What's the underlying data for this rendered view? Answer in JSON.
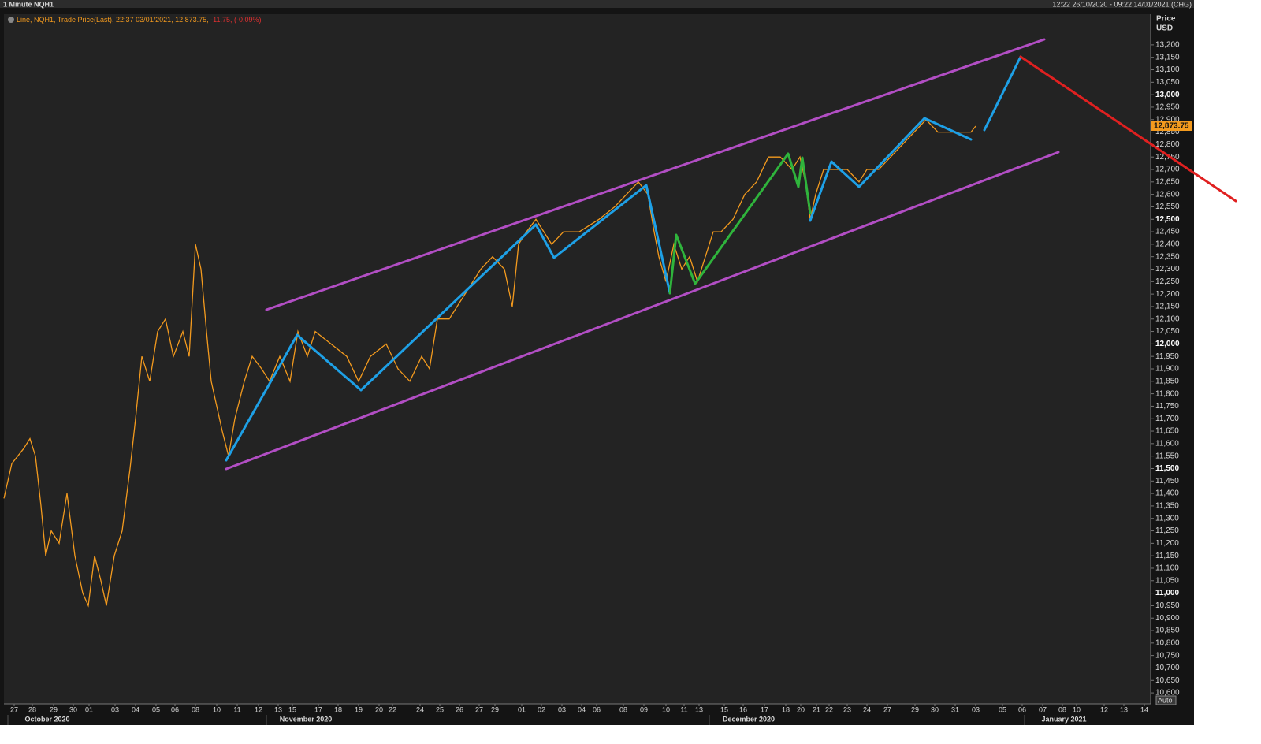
{
  "chart_data": {
    "type": "line",
    "title": "1 Minute NQH1",
    "legend_text": "Line, NQH1, Trade Price(Last), 22:37 03/01/2021, 12,873.75,",
    "legend_change": "-11.75, (-0.09%)",
    "range_text": "12:22 26/10/2020 - 09:22 14/01/2021 (CHG)",
    "y_axis_title": "Price",
    "y_axis_unit": "USD",
    "last_price_label": "12,873.75",
    "scale_button": "Auto",
    "color": "#f39a1e",
    "xlim": [
      0,
      1455
    ],
    "ylim": [
      10556,
      13323
    ],
    "xticks": [
      {
        "value": 13,
        "label": "27"
      },
      {
        "value": 36,
        "label": "28"
      },
      {
        "value": 63,
        "label": "29"
      },
      {
        "value": 88,
        "label": "30"
      },
      {
        "value": 108,
        "label": "01"
      },
      {
        "value": 141,
        "label": "03"
      },
      {
        "value": 167,
        "label": "04"
      },
      {
        "value": 193,
        "label": "05"
      },
      {
        "value": 217,
        "label": "06"
      },
      {
        "value": 243,
        "label": "08"
      },
      {
        "value": 270,
        "label": "10"
      },
      {
        "value": 296,
        "label": "11"
      },
      {
        "value": 323,
        "label": "12"
      },
      {
        "value": 348,
        "label": "13"
      },
      {
        "value": 366,
        "label": "15"
      },
      {
        "value": 399,
        "label": "17"
      },
      {
        "value": 424,
        "label": "18"
      },
      {
        "value": 450,
        "label": "19"
      },
      {
        "value": 476,
        "label": "20"
      },
      {
        "value": 493,
        "label": "22"
      },
      {
        "value": 528,
        "label": "24"
      },
      {
        "value": 553,
        "label": "25"
      },
      {
        "value": 578,
        "label": "26"
      },
      {
        "value": 603,
        "label": "27"
      },
      {
        "value": 623,
        "label": "29"
      },
      {
        "value": 657,
        "label": "01"
      },
      {
        "value": 682,
        "label": "02"
      },
      {
        "value": 708,
        "label": "03"
      },
      {
        "value": 733,
        "label": "04"
      },
      {
        "value": 752,
        "label": "06"
      },
      {
        "value": 786,
        "label": "08"
      },
      {
        "value": 812,
        "label": "09"
      },
      {
        "value": 840,
        "label": "10"
      },
      {
        "value": 863,
        "label": "11"
      },
      {
        "value": 882,
        "label": "13"
      },
      {
        "value": 914,
        "label": "15"
      },
      {
        "value": 938,
        "label": "16"
      },
      {
        "value": 965,
        "label": "17"
      },
      {
        "value": 992,
        "label": "18"
      },
      {
        "value": 1011,
        "label": "20"
      },
      {
        "value": 1031,
        "label": "21"
      },
      {
        "value": 1047,
        "label": "22"
      },
      {
        "value": 1070,
        "label": "23"
      },
      {
        "value": 1095,
        "label": "24"
      },
      {
        "value": 1121,
        "label": "27"
      },
      {
        "value": 1156,
        "label": "29"
      },
      {
        "value": 1181,
        "label": "30"
      },
      {
        "value": 1207,
        "label": "31"
      },
      {
        "value": 1233,
        "label": "03"
      },
      {
        "value": 1267,
        "label": "05"
      },
      {
        "value": 1292,
        "label": "06"
      },
      {
        "value": 1318,
        "label": "07"
      },
      {
        "value": 1343,
        "label": "08"
      },
      {
        "value": 1361,
        "label": "10"
      },
      {
        "value": 1396,
        "label": "12"
      },
      {
        "value": 1421,
        "label": "13"
      },
      {
        "value": 1447,
        "label": "14"
      }
    ],
    "months": [
      {
        "value": 55,
        "label": "October 2020"
      },
      {
        "value": 383,
        "label": "November 2020"
      },
      {
        "value": 945,
        "label": "December 2020"
      },
      {
        "value": 1345,
        "label": "January 2021"
      }
    ],
    "yticks": [
      {
        "value": 10600,
        "label": "10,600"
      },
      {
        "value": 10650,
        "label": "10,650"
      },
      {
        "value": 10700,
        "label": "10,700"
      },
      {
        "value": 10750,
        "label": "10,750"
      },
      {
        "value": 10800,
        "label": "10,800"
      },
      {
        "value": 10850,
        "label": "10,850"
      },
      {
        "value": 10900,
        "label": "10,900"
      },
      {
        "value": 10950,
        "label": "10,950"
      },
      {
        "value": 11000,
        "label": "11,000"
      },
      {
        "value": 11050,
        "label": "11,050"
      },
      {
        "value": 11100,
        "label": "11,100"
      },
      {
        "value": 11150,
        "label": "11,150"
      },
      {
        "value": 11200,
        "label": "11,200"
      },
      {
        "value": 11250,
        "label": "11,250"
      },
      {
        "value": 11300,
        "label": "11,300"
      },
      {
        "value": 11350,
        "label": "11,350"
      },
      {
        "value": 11400,
        "label": "11,400"
      },
      {
        "value": 11450,
        "label": "11,450"
      },
      {
        "value": 11500,
        "label": "11,500"
      },
      {
        "value": 11550,
        "label": "11,550"
      },
      {
        "value": 11600,
        "label": "11,600"
      },
      {
        "value": 11650,
        "label": "11,650"
      },
      {
        "value": 11700,
        "label": "11,700"
      },
      {
        "value": 11750,
        "label": "11,750"
      },
      {
        "value": 11800,
        "label": "11,800"
      },
      {
        "value": 11850,
        "label": "11,850"
      },
      {
        "value": 11900,
        "label": "11,900"
      },
      {
        "value": 11950,
        "label": "11,950"
      },
      {
        "value": 12000,
        "label": "12,000"
      },
      {
        "value": 12050,
        "label": "12,050"
      },
      {
        "value": 12100,
        "label": "12,100"
      },
      {
        "value": 12150,
        "label": "12,150"
      },
      {
        "value": 12200,
        "label": "12,200"
      },
      {
        "value": 12250,
        "label": "12,250"
      },
      {
        "value": 12300,
        "label": "12,300"
      },
      {
        "value": 12350,
        "label": "12,350"
      },
      {
        "value": 12400,
        "label": "12,400"
      },
      {
        "value": 12450,
        "label": "12,450"
      },
      {
        "value": 12500,
        "label": "12,500"
      },
      {
        "value": 12550,
        "label": "12,550"
      },
      {
        "value": 12600,
        "label": "12,600"
      },
      {
        "value": 12650,
        "label": "12,650"
      },
      {
        "value": 12700,
        "label": "12,700"
      },
      {
        "value": 12750,
        "label": "12,750"
      },
      {
        "value": 12800,
        "label": "12,800"
      },
      {
        "value": 12850,
        "label": "12,850"
      },
      {
        "value": 12900,
        "label": "12,900"
      },
      {
        "value": 12950,
        "label": "12,950"
      },
      {
        "value": 13000,
        "label": "13,000"
      },
      {
        "value": 13050,
        "label": "13,050"
      },
      {
        "value": 13100,
        "label": "13,100"
      },
      {
        "value": 13150,
        "label": "13,150"
      },
      {
        "value": 13200,
        "label": "13,200"
      }
    ],
    "x": [
      0,
      10,
      25,
      33,
      40,
      47,
      53,
      60,
      70,
      80,
      90,
      100,
      107,
      115,
      123,
      130,
      140,
      150,
      160,
      167,
      175,
      185,
      195,
      205,
      215,
      227,
      235,
      243,
      250,
      257,
      263,
      270,
      277,
      285,
      293,
      305,
      315,
      327,
      337,
      350,
      363,
      373,
      385,
      395,
      415,
      435,
      450,
      465,
      485,
      500,
      515,
      530,
      540,
      550,
      565,
      585,
      605,
      620,
      635,
      645,
      653,
      663,
      675,
      685,
      695,
      710,
      730,
      755,
      775,
      790,
      805,
      817,
      825,
      831,
      840,
      850,
      860,
      870,
      880,
      890,
      900,
      910,
      925,
      940,
      955,
      970,
      985,
      1000,
      1010,
      1017,
      1023,
      1030,
      1040,
      1055,
      1070,
      1085,
      1095,
      1110,
      1125,
      1140,
      1155,
      1170,
      1185,
      1200,
      1215,
      1227,
      1233
    ],
    "values": [
      11380,
      11520,
      11580,
      11620,
      11550,
      11350,
      11150,
      11250,
      11200,
      11400,
      11150,
      11000,
      10950,
      11150,
      11050,
      10950,
      11150,
      11250,
      11500,
      11700,
      11950,
      11850,
      12050,
      12100,
      11950,
      12050,
      11950,
      12400,
      12300,
      12050,
      11850,
      11750,
      11650,
      11550,
      11700,
      11850,
      11950,
      11900,
      11850,
      11950,
      11850,
      12050,
      11950,
      12050,
      12000,
      11950,
      11850,
      11950,
      12000,
      11900,
      11850,
      11950,
      11900,
      12100,
      12100,
      12200,
      12300,
      12350,
      12300,
      12150,
      12400,
      12450,
      12500,
      12450,
      12400,
      12450,
      12450,
      12500,
      12550,
      12600,
      12650,
      12600,
      12450,
      12350,
      12250,
      12400,
      12300,
      12350,
      12250,
      12350,
      12450,
      12450,
      12500,
      12600,
      12650,
      12750,
      12750,
      12700,
      12750,
      12650,
      12500,
      12600,
      12700,
      12700,
      12700,
      12650,
      12700,
      12700,
      12750,
      12800,
      12850,
      12900,
      12850,
      12850,
      12850,
      12850,
      12874
    ]
  }
}
